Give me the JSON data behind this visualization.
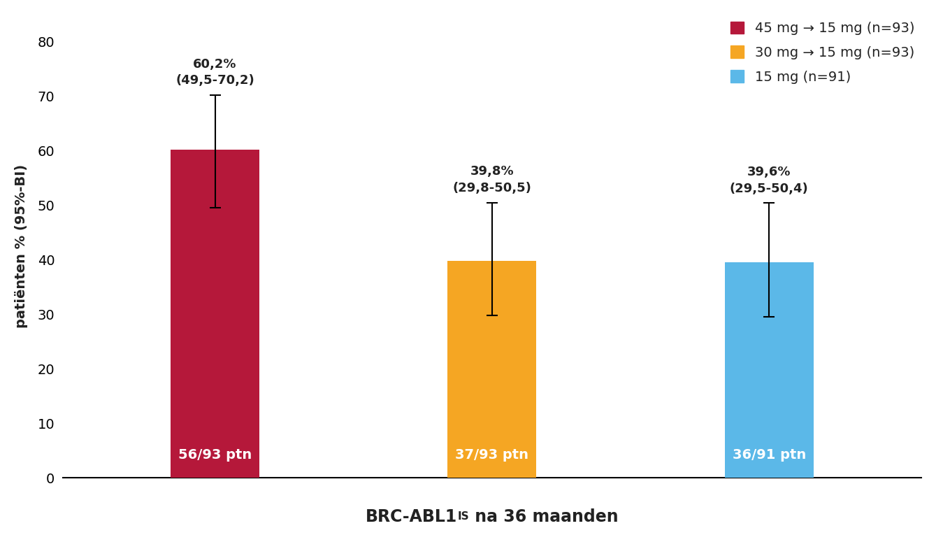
{
  "categories": [
    "45 mg → 15 mg",
    "30 mg → 15 mg",
    "15 mg"
  ],
  "values": [
    60.2,
    39.8,
    39.6
  ],
  "ci_lower": [
    49.5,
    29.8,
    29.5
  ],
  "ci_upper": [
    70.2,
    50.5,
    50.4
  ],
  "bar_colors": [
    "#B5183A",
    "#F5A623",
    "#5BB8E8"
  ],
  "bar_labels": [
    "56/93 ptn",
    "37/93 ptn",
    "36/91 ptn"
  ],
  "top_labels": [
    "60,2%\n(49,5-70,2)",
    "39,8%\n(29,8-50,5)",
    "39,6%\n(29,5-50,4)"
  ],
  "ylabel": "patiënten % (95%-BI)",
  "ylim": [
    0,
    85
  ],
  "yticks": [
    0,
    10,
    20,
    30,
    40,
    50,
    60,
    70,
    80
  ],
  "legend_labels": [
    "45 mg → 15 mg (n=93)",
    "30 mg → 15 mg (n=93)",
    "15 mg (n=91)"
  ],
  "legend_colors": [
    "#B5183A",
    "#F5A623",
    "#5BB8E8"
  ],
  "background_color": "#FFFFFF",
  "bar_width": 0.32,
  "text_color": "#222222"
}
